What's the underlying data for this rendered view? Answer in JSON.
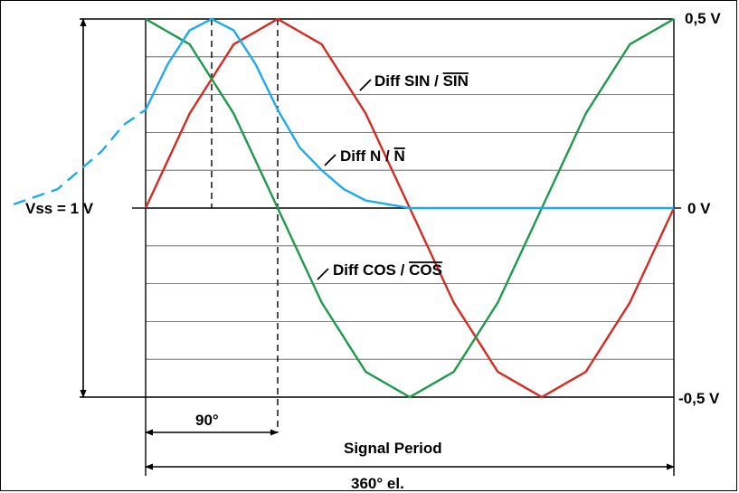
{
  "chart_data": {
    "type": "line",
    "title": "",
    "xlabel": "Signal Period",
    "x_span_label": "360° el.",
    "phase_label": "90°",
    "amplitude_label": "Vss = 1 V",
    "x_range_deg": [
      0,
      360
    ],
    "ylim": [
      -0.5,
      0.5
    ],
    "y_tick_labels": [
      "0,5 V",
      "0 V",
      "-0,5 V"
    ],
    "y_tick_values": [
      0.5,
      0,
      -0.5
    ],
    "grid": true,
    "series": [
      {
        "name": "Diff SIN / SIN",
        "label_main": "Diff  SIN  / ",
        "label_bar": "SIN",
        "color": "#d62a22",
        "x": [
          0,
          30,
          60,
          90,
          120,
          150,
          180,
          210,
          240,
          270,
          300,
          330,
          360
        ],
        "y": [
          0,
          0.25,
          0.433,
          0.5,
          0.433,
          0.25,
          0,
          -0.25,
          -0.433,
          -0.5,
          -0.433,
          -0.25,
          0
        ]
      },
      {
        "name": "Diff COS / COS",
        "label_main": "Diff  COS   / ",
        "label_bar": "COS",
        "color": "#1f9a4c",
        "x": [
          0,
          30,
          60,
          90,
          120,
          150,
          180,
          210,
          240,
          270,
          300,
          330,
          360
        ],
        "y": [
          0.5,
          0.433,
          0.25,
          0,
          -0.25,
          -0.433,
          -0.5,
          -0.433,
          -0.25,
          0,
          0.25,
          0.433,
          0.5
        ]
      },
      {
        "name": "Diff N / N",
        "label_main": "Diff   N  / ",
        "label_bar": "N",
        "color": "#1eaaf0",
        "x": [
          -90,
          -60,
          -45,
          -30,
          -15,
          0,
          15,
          30,
          45,
          60,
          75,
          90,
          105,
          120,
          135,
          150,
          165,
          180,
          210,
          240,
          270,
          300,
          330,
          360
        ],
        "y": [
          0.01,
          0.05,
          0.1,
          0.15,
          0.22,
          0.26,
          0.38,
          0.47,
          0.5,
          0.47,
          0.38,
          0.26,
          0.16,
          0.1,
          0.05,
          0.02,
          0.01,
          0.0,
          0.0,
          0.0,
          0.0,
          0.0,
          0.0,
          0.0
        ],
        "dashed_before_x": 0
      }
    ]
  }
}
